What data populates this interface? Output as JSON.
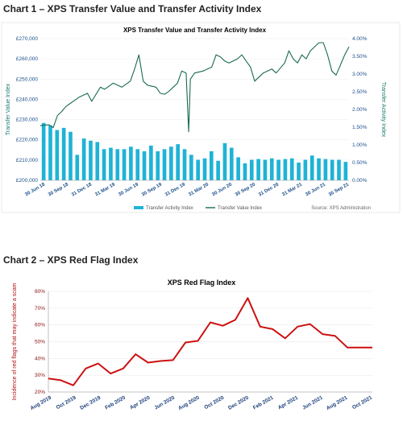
{
  "headings": {
    "chart1": "Chart 1 – XPS Transfer Value and Transfer Activity Index",
    "chart2": "Chart 2 – XPS Red Flag Index"
  },
  "source": "Source: XPS Administration",
  "colors": {
    "bars": "#1fb3d6",
    "line": "#1a6a50",
    "red": "#cc1111",
    "tick_blue": "#1b4f8a"
  },
  "chart_data": [
    {
      "type": "bar+line",
      "title": "XPS Transfer Value and Transfer Activity Index",
      "ylabel_left": "Transfer Value Index",
      "ylabel_right": "Transfer Activity Index",
      "ylim_left": [
        200000,
        270000
      ],
      "ylim_right": [
        0,
        4
      ],
      "yticks_left": [
        "£200,000",
        "£210,000",
        "£220,000",
        "£230,000",
        "£240,000",
        "£250,000",
        "£260,000",
        "£270,000"
      ],
      "yticks_right": [
        "0.00%",
        "0.50%",
        "1.00%",
        "1.50%",
        "2.00%",
        "2.50%",
        "3.00%",
        "3.50%",
        "4.00%"
      ],
      "xticks": [
        "30 Jun 18",
        "30 Sep 18",
        "31 Dec 18",
        "31 Mar 19",
        "30 Jun 19",
        "30 Sep 19",
        "31 Dec 19",
        "31 Mar 20",
        "30 Jun 20",
        "30 Sep 20",
        "31 Dec 20",
        "31 Mar 21",
        "30 Jun 21",
        "30 Sep 21"
      ],
      "legend": [
        "Transfer Activity Index",
        "Transfer Value Index"
      ],
      "bar_series": {
        "name": "Transfer Activity Index",
        "values": [
          1.62,
          1.55,
          1.42,
          1.48,
          1.37,
          0.72,
          1.18,
          1.12,
          1.08,
          0.88,
          0.92,
          0.88,
          0.88,
          0.95,
          0.88,
          0.82,
          0.98,
          0.82,
          0.88,
          0.95,
          1.02,
          0.88,
          0.72,
          0.58,
          0.62,
          0.82,
          0.55,
          1.05,
          0.92,
          0.65,
          0.48,
          0.58,
          0.6,
          0.58,
          0.62,
          0.58,
          0.6,
          0.62,
          0.5,
          0.58,
          0.7,
          0.62,
          0.6,
          0.58,
          0.58,
          0.52
        ]
      },
      "line_series": {
        "name": "Transfer Value Index",
        "points": [
          [
            0,
            227000
          ],
          [
            2,
            227500
          ],
          [
            3,
            226000
          ],
          [
            4,
            232000
          ],
          [
            5,
            234000
          ],
          [
            6,
            236500
          ],
          [
            7,
            238000
          ],
          [
            9,
            241000
          ],
          [
            11,
            243000
          ],
          [
            12,
            239000
          ],
          [
            14,
            246000
          ],
          [
            15,
            245000
          ],
          [
            17,
            248000
          ],
          [
            19,
            246000
          ],
          [
            21,
            249000
          ],
          [
            22,
            255000
          ],
          [
            23,
            262000
          ],
          [
            24,
            249000
          ],
          [
            25,
            247000
          ],
          [
            27,
            246000
          ],
          [
            28,
            243000
          ],
          [
            29,
            242500
          ],
          [
            30,
            244000
          ],
          [
            31,
            246000
          ],
          [
            32,
            248000
          ],
          [
            33,
            254000
          ],
          [
            34,
            253000
          ],
          [
            34.6,
            224000
          ],
          [
            35,
            250000
          ],
          [
            36,
            253000
          ],
          [
            38,
            254000
          ],
          [
            40,
            256000
          ],
          [
            41,
            262000
          ],
          [
            42,
            261000
          ],
          [
            43,
            259000
          ],
          [
            44,
            258000
          ],
          [
            46,
            260000
          ],
          [
            47,
            262000
          ],
          [
            48,
            259000
          ],
          [
            49,
            256000
          ],
          [
            50,
            249000
          ],
          [
            52,
            253000
          ],
          [
            54,
            255000
          ],
          [
            55,
            253000
          ],
          [
            57,
            258000
          ],
          [
            58,
            264000
          ],
          [
            59,
            260000
          ],
          [
            60,
            258000
          ],
          [
            61,
            262000
          ],
          [
            62,
            260000
          ],
          [
            63,
            264000
          ],
          [
            64,
            266000
          ],
          [
            65,
            268000
          ],
          [
            66,
            268000
          ],
          [
            67,
            262000
          ],
          [
            68,
            254000
          ],
          [
            69,
            252000
          ],
          [
            70,
            257000
          ],
          [
            71,
            262000
          ],
          [
            72,
            266000
          ]
        ],
        "x_max": 72
      }
    },
    {
      "type": "line",
      "title": "XPS Red Flag Index",
      "ylabel": "Incidence of red flags that may indicate a scam",
      "ylim": [
        20,
        80
      ],
      "yticks": [
        "20%",
        "30%",
        "40%",
        "50%",
        "60%",
        "70%",
        "80%"
      ],
      "xticks": [
        "Aug 2019",
        "Oct 2019",
        "Dec 2019",
        "Feb 2020",
        "Apr 2020",
        "Jun 2020",
        "Aug 2020",
        "Oct 2020",
        "Dec 2020",
        "Feb 2021",
        "Apr 2021",
        "Jun 2021",
        "Aug 2021",
        "Oct 2021"
      ],
      "series": [
        {
          "values": [
            28,
            27,
            24,
            34,
            37,
            31,
            34,
            42.5,
            37.5,
            38.5,
            39,
            49.5,
            50.5,
            61.5,
            59.5,
            63,
            76,
            59,
            57.5,
            52,
            59,
            60.5,
            54.5,
            53.5,
            46.5,
            46.5,
            46.5
          ]
        }
      ]
    }
  ]
}
